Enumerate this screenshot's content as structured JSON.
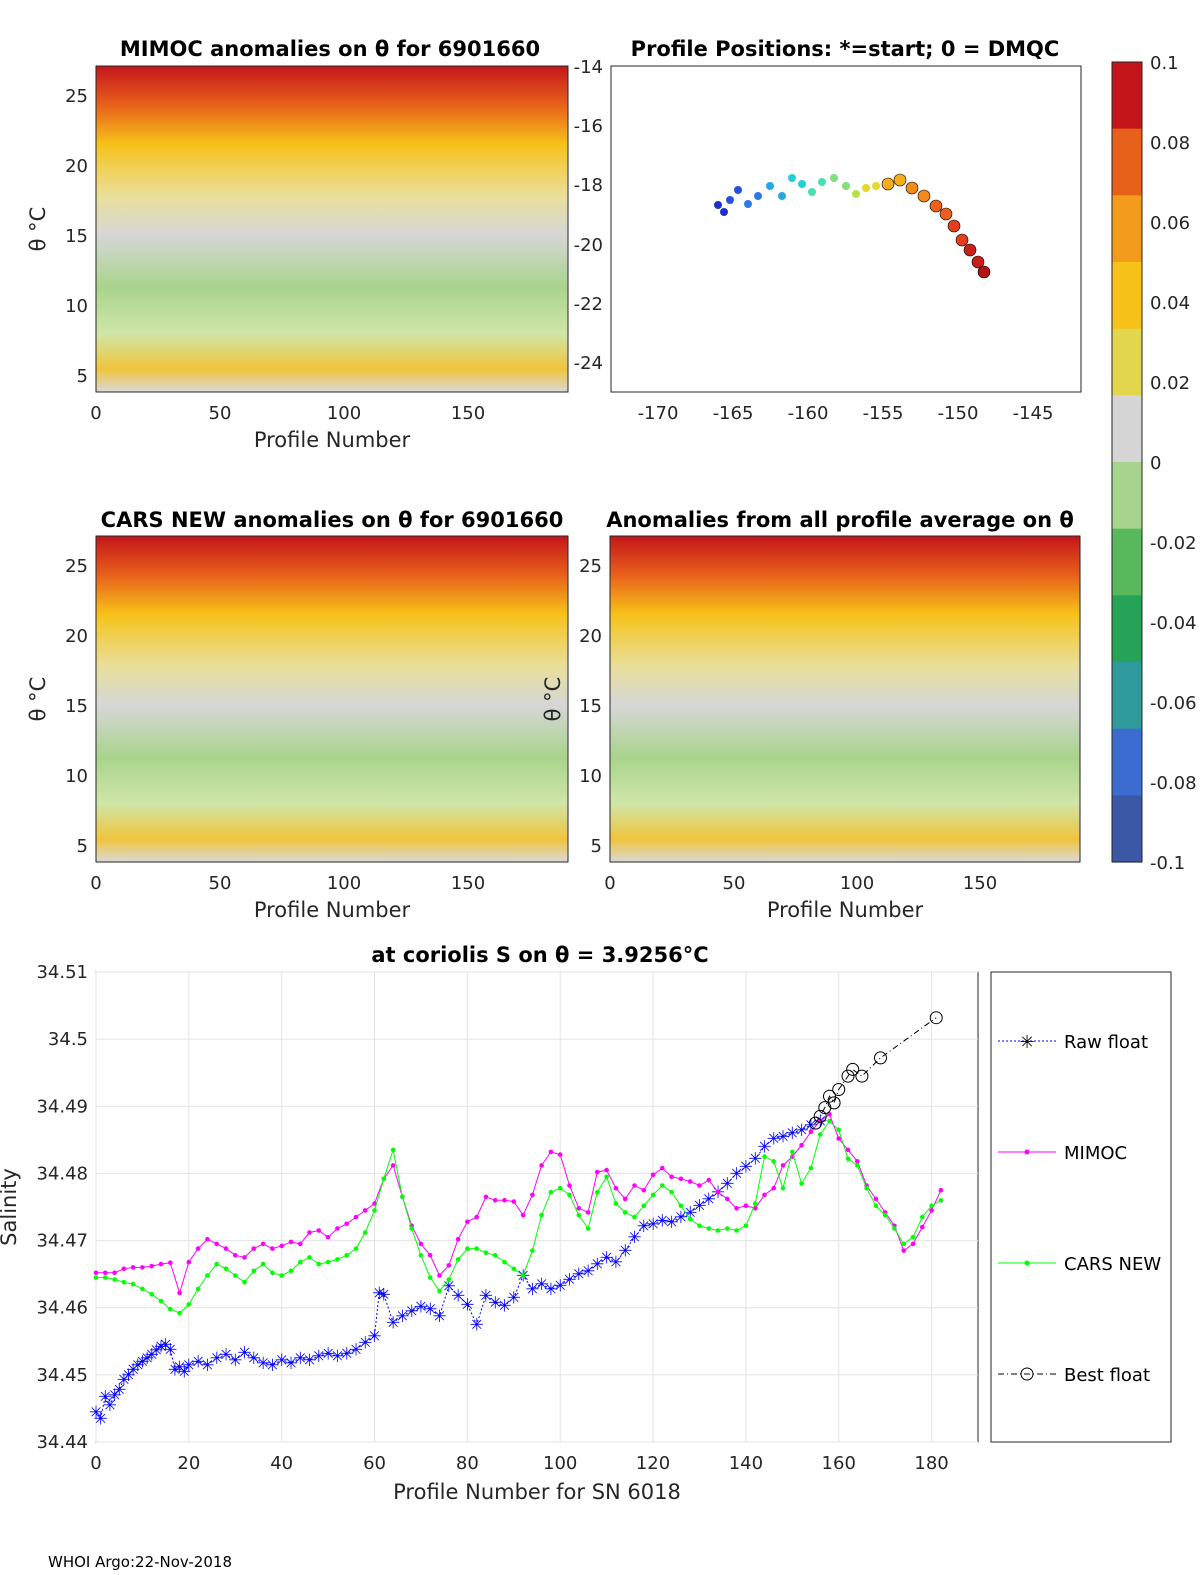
{
  "footer": "WHOI Argo:22-Nov-2018",
  "chart_data": [
    {
      "type": "heatmap",
      "title": "MIMOC anomalies on θ  for 6901660",
      "xlabel": "Profile Number",
      "ylabel": "θ °C",
      "xlim": [
        0,
        190
      ],
      "ylim": [
        4,
        27
      ],
      "xticks": [
        "0",
        "50",
        "100",
        "150"
      ],
      "yticks": [
        "5",
        "10",
        "15",
        "20",
        "25"
      ]
    },
    {
      "type": "scatter",
      "title": "Profile Positions: *=start; 0 = DMQC",
      "xlim": [
        -174,
        -141.5
      ],
      "ylim": [
        -25,
        -14
      ],
      "xticks": [
        "-170",
        "-165",
        "-160",
        "-155",
        "-150",
        "-145"
      ],
      "yticks": [
        "-14",
        "-16",
        "-18",
        "-20",
        "-22",
        "-24"
      ]
    },
    {
      "type": "heatmap",
      "title": "CARS NEW anomalies on θ for 6901660",
      "xlabel": "Profile Number",
      "ylabel": "θ °C",
      "xlim": [
        0,
        190
      ],
      "ylim": [
        4,
        27
      ],
      "xticks": [
        "0",
        "50",
        "100",
        "150"
      ],
      "yticks": [
        "5",
        "10",
        "15",
        "20",
        "25"
      ]
    },
    {
      "type": "heatmap",
      "title": "Anomalies from all profile average on θ",
      "xlabel": "Profile Number",
      "ylabel": "θ °C",
      "xlim": [
        0,
        190
      ],
      "ylim": [
        4,
        27
      ],
      "xticks": [
        "0",
        "50",
        "100",
        "150"
      ],
      "yticks": [
        "5",
        "10",
        "15",
        "20",
        "25"
      ]
    },
    {
      "type": "colorbar",
      "range": [
        -0.1,
        0.1
      ],
      "ticks": [
        "0.1",
        "0.08",
        "0.06",
        "0.04",
        "0.02",
        "0",
        "-0.02",
        "-0.04",
        "-0.06",
        "-0.08",
        "-0.1"
      ],
      "colors": [
        "#3b57a5",
        "#3d6cd0",
        "#2f9a9b",
        "#25a357",
        "#58b85c",
        "#a7d48c",
        "#d6d6d6",
        "#e3d64f",
        "#f6c219",
        "#f39c1c",
        "#e8611b",
        "#c4151b"
      ]
    },
    {
      "type": "line",
      "title": "at coriolis S on θ = 3.9256°C",
      "xlabel": "Profile Number for SN 6018",
      "ylabel": "Salinity",
      "xlim": [
        0,
        190
      ],
      "ylim": [
        34.44,
        34.51
      ],
      "xticks": [
        "0",
        "20",
        "40",
        "60",
        "80",
        "100",
        "120",
        "140",
        "160",
        "180"
      ],
      "yticks": [
        "34.44",
        "34.45",
        "34.46",
        "34.47",
        "34.48",
        "34.49",
        "34.5",
        "34.51"
      ],
      "grid": true,
      "legend_position": "outside-right",
      "series": [
        {
          "name": "Raw float",
          "color": "#0000ff",
          "marker": "asterisk",
          "x": [
            0,
            1,
            2,
            3,
            4,
            5,
            6,
            7,
            8,
            9,
            10,
            11,
            12,
            13,
            14,
            15,
            16,
            17,
            18,
            19,
            20,
            22,
            24,
            26,
            28,
            30,
            32,
            34,
            36,
            38,
            40,
            42,
            44,
            46,
            48,
            50,
            52,
            54,
            56,
            58,
            60,
            61,
            62,
            64,
            66,
            68,
            70,
            72,
            74,
            76,
            78,
            80,
            82,
            84,
            86,
            88,
            90,
            92,
            94,
            96,
            98,
            100,
            102,
            104,
            106,
            108,
            110,
            112,
            114,
            116,
            118,
            120,
            122,
            124,
            126,
            128,
            130,
            132,
            134,
            136,
            138,
            140,
            142,
            144,
            146,
            148,
            150,
            152,
            154,
            156
          ],
          "y": [
            34.4445,
            34.4435,
            34.4468,
            34.4455,
            34.447,
            34.4478,
            34.4493,
            34.45,
            34.4508,
            34.4515,
            34.452,
            34.4525,
            34.453,
            34.4537,
            34.4542,
            34.4545,
            34.4538,
            34.4508,
            34.4512,
            34.4505,
            34.4515,
            34.452,
            34.4515,
            34.4525,
            34.453,
            34.4522,
            34.4533,
            34.4525,
            34.4518,
            34.4515,
            34.4522,
            34.4518,
            34.4525,
            34.4522,
            34.4528,
            34.4532,
            34.4528,
            34.4532,
            34.4538,
            34.4548,
            34.4558,
            34.4622,
            34.462,
            34.4578,
            34.4588,
            34.4595,
            34.4602,
            34.4598,
            34.4588,
            34.4632,
            34.4618,
            34.4605,
            34.4575,
            34.4618,
            34.4608,
            34.4603,
            34.4615,
            34.4648,
            34.4628,
            34.4635,
            34.4628,
            34.4633,
            34.4642,
            34.465,
            34.4655,
            34.4665,
            34.4675,
            34.4668,
            34.4685,
            34.4705,
            34.4722,
            34.4725,
            34.473,
            34.4728,
            34.4735,
            34.4742,
            34.4752,
            34.4762,
            34.4772,
            34.4785,
            34.48,
            34.481,
            34.4822,
            34.484,
            34.4852,
            34.4855,
            34.486,
            34.4865,
            34.4872,
            34.4878
          ]
        },
        {
          "name": "MIMOC",
          "color": "#ff00ff",
          "marker": "dot",
          "x": [
            0,
            2,
            4,
            6,
            8,
            10,
            12,
            14,
            16,
            18,
            20,
            22,
            24,
            26,
            28,
            30,
            32,
            34,
            36,
            38,
            40,
            42,
            44,
            46,
            48,
            50,
            52,
            54,
            56,
            58,
            60,
            62,
            64,
            66,
            68,
            70,
            72,
            74,
            76,
            78,
            80,
            82,
            84,
            86,
            88,
            90,
            92,
            94,
            96,
            98,
            100,
            102,
            104,
            106,
            108,
            110,
            112,
            114,
            116,
            118,
            120,
            122,
            124,
            126,
            128,
            130,
            132,
            134,
            136,
            138,
            140,
            142,
            144,
            146,
            148,
            150,
            152,
            154,
            156,
            158,
            160,
            162,
            164,
            166,
            168,
            170,
            172,
            174,
            176,
            178,
            180,
            182
          ],
          "y": [
            34.4652,
            34.4652,
            34.4652,
            34.4658,
            34.466,
            34.466,
            34.4662,
            34.4665,
            34.4667,
            34.4622,
            34.4668,
            34.4688,
            34.4702,
            34.4695,
            34.4688,
            34.4678,
            34.4675,
            34.4688,
            34.4695,
            34.4688,
            34.4692,
            34.4698,
            34.4695,
            34.4712,
            34.4715,
            34.4705,
            34.4718,
            34.4725,
            34.4735,
            34.4745,
            34.4755,
            34.4792,
            34.4812,
            34.4765,
            34.4722,
            34.4695,
            34.4678,
            34.4648,
            34.4663,
            34.4702,
            34.4728,
            34.4735,
            34.4765,
            34.476,
            34.476,
            34.4758,
            34.4738,
            34.4768,
            34.4812,
            34.4832,
            34.4828,
            34.4782,
            34.4748,
            34.4742,
            34.4802,
            34.4805,
            34.4778,
            34.4762,
            34.4782,
            34.4775,
            34.4798,
            34.4808,
            34.4795,
            34.4792,
            34.4788,
            34.4782,
            34.479,
            34.4772,
            34.4762,
            34.4748,
            34.4752,
            34.4748,
            34.4768,
            34.4778,
            34.4812,
            34.4825,
            34.4842,
            34.4862,
            34.4878,
            34.4888,
            34.4852,
            34.4835,
            34.4818,
            34.4782,
            34.4762,
            34.4742,
            34.4722,
            34.4685,
            34.4695,
            34.472,
            34.4745,
            34.4775
          ]
        },
        {
          "name": "CARS NEW",
          "color": "#00ff00",
          "marker": "dot",
          "x": [
            0,
            2,
            4,
            6,
            8,
            10,
            12,
            14,
            16,
            18,
            20,
            22,
            24,
            26,
            28,
            30,
            32,
            34,
            36,
            38,
            40,
            42,
            44,
            46,
            48,
            50,
            52,
            54,
            56,
            58,
            60,
            62,
            64,
            66,
            68,
            70,
            72,
            74,
            76,
            78,
            80,
            82,
            84,
            86,
            88,
            90,
            92,
            94,
            96,
            98,
            100,
            102,
            104,
            106,
            108,
            110,
            112,
            114,
            116,
            118,
            120,
            122,
            124,
            126,
            128,
            130,
            132,
            134,
            136,
            138,
            140,
            142,
            144,
            146,
            148,
            150,
            152,
            154,
            156,
            158,
            160,
            162,
            164,
            166,
            168,
            170,
            172,
            174,
            176,
            178,
            180,
            182
          ],
          "y": [
            34.4645,
            34.4645,
            34.4642,
            34.4638,
            34.4635,
            34.4628,
            34.462,
            34.461,
            34.4598,
            34.4592,
            34.4605,
            34.4628,
            34.4648,
            34.4665,
            34.4658,
            34.4648,
            34.4638,
            34.4655,
            34.4665,
            34.4652,
            34.4648,
            34.4655,
            34.4668,
            34.4675,
            34.4665,
            34.4668,
            34.4672,
            34.4678,
            34.4688,
            34.4712,
            34.4745,
            34.4792,
            34.4835,
            34.4765,
            34.4718,
            34.4678,
            34.4645,
            34.4625,
            34.4642,
            34.4672,
            34.4688,
            34.4688,
            34.4682,
            34.4678,
            34.4668,
            34.4658,
            34.4648,
            34.4685,
            34.4738,
            34.4772,
            34.4778,
            34.4768,
            34.4738,
            34.4718,
            34.4772,
            34.4795,
            34.4755,
            34.4742,
            34.4735,
            34.4752,
            34.4768,
            34.4782,
            34.4772,
            34.4752,
            34.4732,
            34.4722,
            34.4718,
            34.4715,
            34.4718,
            34.4715,
            34.4722,
            34.4755,
            34.4825,
            34.4818,
            34.4778,
            34.4832,
            34.4785,
            34.4808,
            34.4858,
            34.4878,
            34.4865,
            34.4822,
            34.4812,
            34.4778,
            34.4752,
            34.4738,
            34.4718,
            34.4695,
            34.4705,
            34.4735,
            34.4752,
            34.476
          ]
        },
        {
          "name": "Best float",
          "color": "#000000",
          "marker": "circle",
          "x": [
            155,
            156,
            157,
            158,
            159,
            160,
            162,
            163,
            165,
            169,
            181
          ],
          "y": [
            34.4875,
            34.4885,
            34.4898,
            34.4915,
            34.4905,
            34.4925,
            34.4945,
            34.4955,
            34.4945,
            34.4972,
            34.5032
          ]
        }
      ]
    }
  ]
}
